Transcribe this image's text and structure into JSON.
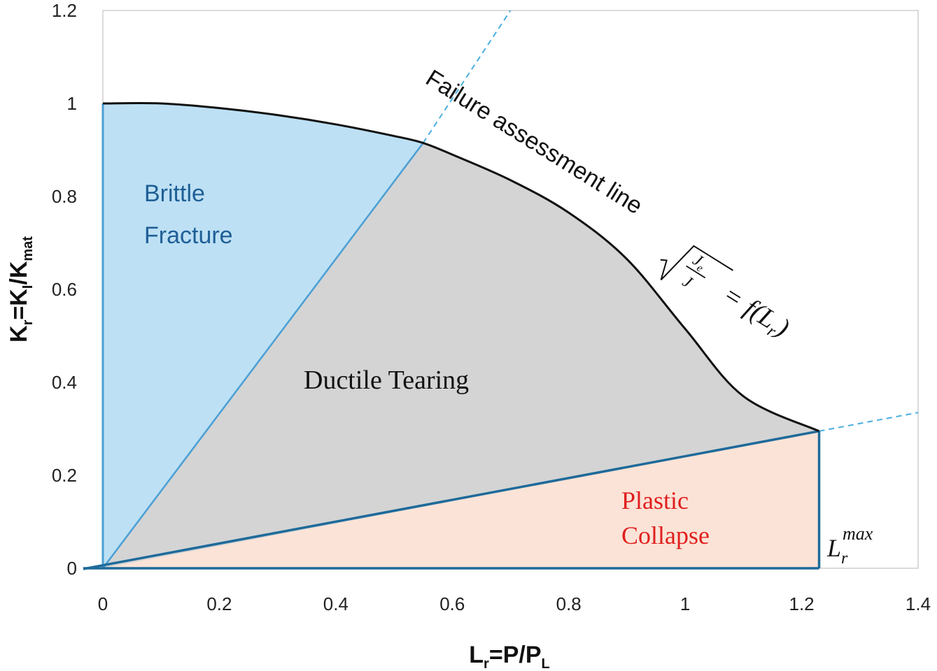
{
  "chart_data": {
    "type": "area",
    "xlabel": {
      "main": "L",
      "sub": "r",
      "rest": "=P/P",
      "sub2": "L"
    },
    "ylabel": {
      "main": "K",
      "sub": "r",
      "mid": "=K",
      "sub2": "I",
      "mid2": "/K",
      "sub3": "mat"
    },
    "xlim": [
      0,
      1.4
    ],
    "ylim": [
      0,
      1.2
    ],
    "x_ticks": [
      "0",
      "0.2",
      "0.4",
      "0.6",
      "0.8",
      "1",
      "1.2",
      "1.4"
    ],
    "y_ticks": [
      "0",
      "0.2",
      "0.4",
      "0.6",
      "0.8",
      "1",
      "1.2"
    ],
    "grid": false,
    "failure_assessment_line": {
      "x": [
        0,
        0.1,
        0.2,
        0.3,
        0.4,
        0.5,
        0.55,
        0.6,
        0.7,
        0.8,
        0.9,
        1.0,
        1.1,
        1.23
      ],
      "y": [
        1.0,
        1.0,
        0.99,
        0.975,
        0.955,
        0.93,
        0.915,
        0.89,
        0.835,
        0.765,
        0.665,
        0.515,
        0.37,
        0.295
      ]
    },
    "regions": [
      {
        "name": "Brittle Fracture",
        "color": "#bde0f4",
        "edge": "#4a9fd5"
      },
      {
        "name": "Ductile Tearing",
        "color": "#d4d4d4",
        "edge": "#1e5e8c"
      },
      {
        "name": "Plastic Collapse",
        "color": "#fbe3d7",
        "edge": "#1e5e8c"
      }
    ],
    "brittle_boundary": {
      "x": [
        0,
        0.55
      ],
      "y": [
        0,
        0.915
      ],
      "extended_to": [
        0.7,
        1.2
      ]
    },
    "collapse_boundary": {
      "x": [
        0,
        1.23
      ],
      "y": [
        0,
        0.295
      ],
      "extended_to": [
        1.4,
        0.335
      ]
    },
    "lr_max": 1.23,
    "annotations": {
      "fal_label": "Failure assessment line",
      "brittle_line1": "Brittle",
      "brittle_line2": "Fracture",
      "ductile": "Ductile Tearing",
      "plastic_line1": "Plastic",
      "plastic_line2": "Collapse",
      "formula": {
        "num": "J",
        "num_sub": "e",
        "den": "J",
        "eq": "=",
        "f": "f",
        "open": "(",
        "L": "L",
        "L_sub": "r",
        "close": ")"
      },
      "lrmax": {
        "L": "L",
        "sub": "r",
        "sup": "max"
      }
    }
  }
}
